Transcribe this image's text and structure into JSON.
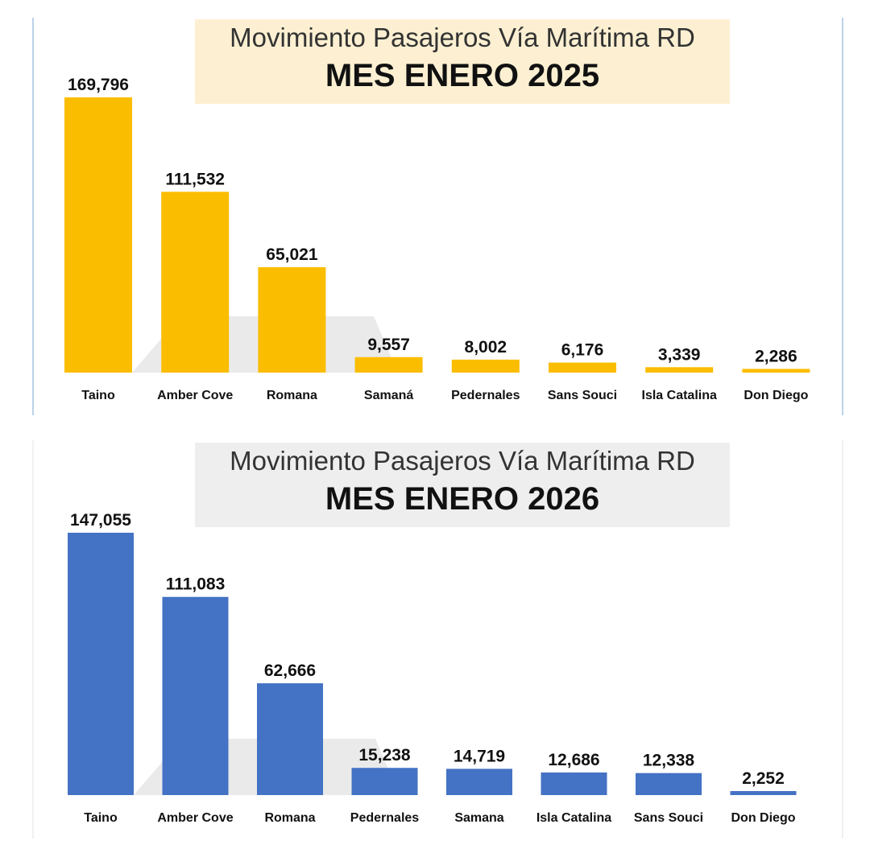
{
  "colors": {
    "chart1_bar": "#fbbd00",
    "chart2_bar": "#4472c4",
    "shadow": "#d9d9d9"
  },
  "chart_data": [
    {
      "type": "bar",
      "title": "Movimiento Pasajeros Vía Marítima RD",
      "subtitle": "MES ENERO 2025",
      "categories": [
        "Taino",
        "Amber Cove",
        "Romana",
        "Samaná",
        "Pedernales",
        "Sans Souci",
        "Isla Catalina",
        "Don Diego"
      ],
      "values": [
        169796,
        111532,
        65021,
        9557,
        8002,
        6176,
        3339,
        2286
      ],
      "value_labels": [
        "169,796",
        "111,532",
        "65,021",
        "9,557",
        "8,002",
        "6,176",
        "3,339",
        "2,286"
      ],
      "xlabel": "",
      "ylabel": "",
      "ylim": [
        0,
        169796
      ],
      "grid": false,
      "legend": "none"
    },
    {
      "type": "bar",
      "title": "Movimiento Pasajeros Vía Marítima RD",
      "subtitle": "MES ENERO 2026",
      "categories": [
        "Taino",
        "Amber Cove",
        "Romana",
        "Pedernales",
        "Samana",
        "Isla Catalina",
        "Sans Souci",
        "Don Diego"
      ],
      "values": [
        147055,
        111083,
        62666,
        15238,
        14719,
        12686,
        12338,
        2252
      ],
      "value_labels": [
        "147,055",
        "111,083",
        "62,666",
        "15,238",
        "14,719",
        "12,686",
        "12,338",
        "2,252"
      ],
      "xlabel": "",
      "ylabel": "",
      "ylim": [
        0,
        147055
      ],
      "grid": false,
      "legend": "none"
    }
  ]
}
